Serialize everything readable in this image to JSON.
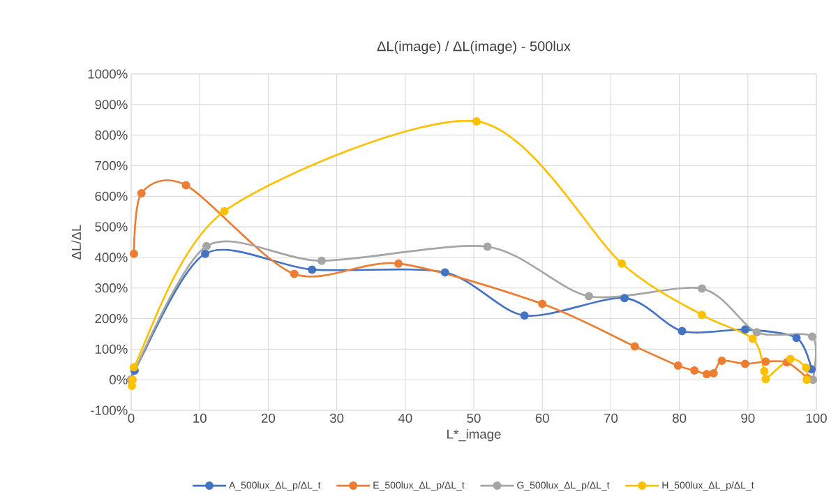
{
  "chart_data": {
    "type": "line",
    "title": "ΔL(image) / ΔL(image) - 500lux",
    "xlabel": "L*_image",
    "ylabel": "ΔL/ΔL",
    "xlim": [
      0,
      100
    ],
    "xticks": [
      0,
      10,
      20,
      30,
      40,
      50,
      60,
      70,
      80,
      90,
      100
    ],
    "ylim": [
      -100,
      1000
    ],
    "yticks": [
      {
        "value": -100,
        "label": "-100%"
      },
      {
        "value": 0,
        "label": "0%"
      },
      {
        "value": 100,
        "label": "100%"
      },
      {
        "value": 200,
        "label": "200%"
      },
      {
        "value": 300,
        "label": "300%"
      },
      {
        "value": 400,
        "label": "400%"
      },
      {
        "value": 500,
        "label": "500%"
      },
      {
        "value": 600,
        "label": "600%"
      },
      {
        "value": 700,
        "label": "700%"
      },
      {
        "value": 800,
        "label": "800%"
      },
      {
        "value": 900,
        "label": "900%"
      },
      {
        "value": 1000,
        "label": "1000%"
      }
    ],
    "grid": true,
    "legend": "bottom",
    "marker": "circle",
    "line_style": "solid",
    "series": [
      {
        "name": "A_500lux_ΔL_p/ΔL_t",
        "color": "#4472c4",
        "x": [
          0,
          0.5,
          10.8,
          26.4,
          45.8,
          57.4,
          72.0,
          80.4,
          89.6,
          97.1,
          99.3
        ],
        "values": [
          0,
          30,
          412,
          360,
          351,
          210,
          267,
          159,
          164,
          137,
          34
        ]
      },
      {
        "name": "E_500lux_ΔL_p/ΔL_t",
        "color": "#ed7d31",
        "x": [
          0.4,
          1.5,
          8.0,
          23.8,
          39.0,
          60.0,
          73.5,
          79.8,
          82.2,
          84.0,
          85.0,
          86.2,
          89.6,
          92.6,
          95.7,
          98.7
        ],
        "values": [
          412,
          610,
          636,
          346,
          380,
          248,
          109,
          46,
          30,
          18,
          21,
          62,
          52,
          59,
          57,
          5
        ]
      },
      {
        "name": "G_500lux_ΔL_p/ΔL_t",
        "color": "#a5a5a5",
        "x": [
          0,
          11.0,
          27.8,
          52.0,
          66.8,
          83.3,
          91.3,
          99.4,
          99.5
        ],
        "values": [
          0,
          437,
          389,
          435,
          273,
          298,
          155,
          141,
          0
        ]
      },
      {
        "name": "H_500lux_ΔL_p/ΔL_t",
        "color": "#ffc000",
        "x": [
          0.1,
          0.2,
          0.4,
          13.6,
          50.4,
          71.6,
          83.3,
          90.7,
          92.4,
          92.6,
          96.2,
          98.5,
          98.6
        ],
        "values": [
          -20,
          0,
          41,
          551,
          845,
          380,
          212,
          134,
          28,
          2,
          68,
          39,
          0
        ]
      }
    ]
  }
}
